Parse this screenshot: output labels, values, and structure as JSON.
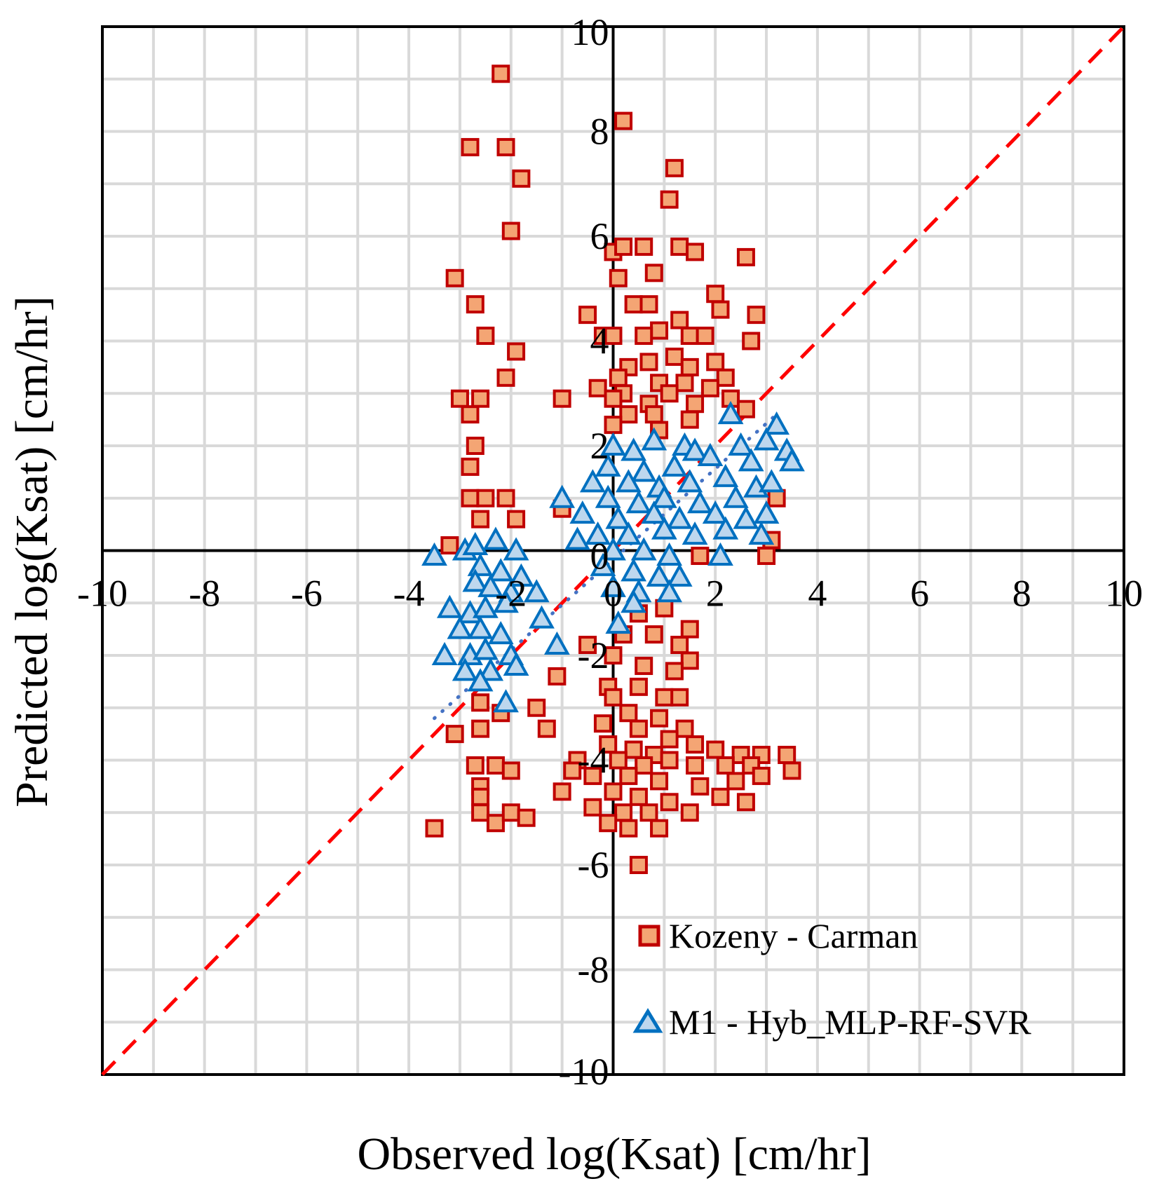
{
  "chart_data": {
    "type": "scatter",
    "title": "",
    "xlabel": "Observed log(Ksat) [cm/hr]",
    "ylabel": "Predicted log(Ksat) [cm/hr]",
    "xlim": [
      -10,
      10
    ],
    "ylim": [
      -10,
      10
    ],
    "x_ticks": [
      "-10",
      "-8",
      "-6",
      "-4",
      "-2",
      "0",
      "2",
      "4",
      "6",
      "8",
      "10"
    ],
    "y_ticks": [
      "-10",
      "-8",
      "-6",
      "-4",
      "-2",
      "0",
      "2",
      "4",
      "6",
      "8",
      "10"
    ],
    "grid": true,
    "legend_position": "bottom-right",
    "reference_line": {
      "name": "1:1 line",
      "style": "dashed",
      "color": "#ff0000",
      "from": [
        -10,
        -10
      ],
      "to": [
        10,
        10
      ]
    },
    "trend_line": {
      "name": "M1 trend",
      "style": "dotted",
      "color": "#4472c4",
      "from": [
        -3.5,
        -3.2
      ],
      "to": [
        3.2,
        2.6
      ]
    },
    "series": [
      {
        "name": "Kozeny - Carman",
        "marker": "square",
        "fill": "#f4a574",
        "stroke": "#c00000",
        "points": [
          [
            -2.2,
            9.1
          ],
          [
            0.2,
            8.2
          ],
          [
            -2.8,
            7.7
          ],
          [
            -2.1,
            7.7
          ],
          [
            -1.8,
            7.1
          ],
          [
            1.2,
            7.3
          ],
          [
            1.1,
            6.7
          ],
          [
            -2.0,
            6.1
          ],
          [
            0.0,
            5.7
          ],
          [
            0.2,
            5.8
          ],
          [
            0.6,
            5.8
          ],
          [
            1.3,
            5.8
          ],
          [
            1.6,
            5.7
          ],
          [
            2.6,
            5.6
          ],
          [
            0.1,
            5.2
          ],
          [
            0.8,
            5.3
          ],
          [
            -3.1,
            5.2
          ],
          [
            2.0,
            4.9
          ],
          [
            -2.7,
            4.7
          ],
          [
            0.4,
            4.7
          ],
          [
            0.7,
            4.7
          ],
          [
            2.1,
            4.6
          ],
          [
            2.8,
            4.5
          ],
          [
            -0.5,
            4.5
          ],
          [
            1.3,
            4.4
          ],
          [
            0.9,
            4.2
          ],
          [
            -0.2,
            4.1
          ],
          [
            0.0,
            4.1
          ],
          [
            0.6,
            4.1
          ],
          [
            1.5,
            4.1
          ],
          [
            1.8,
            4.1
          ],
          [
            2.7,
            4.0
          ],
          [
            -2.5,
            4.1
          ],
          [
            -1.9,
            3.8
          ],
          [
            0.3,
            3.5
          ],
          [
            0.7,
            3.6
          ],
          [
            1.2,
            3.7
          ],
          [
            1.5,
            3.5
          ],
          [
            2.0,
            3.6
          ],
          [
            0.1,
            3.3
          ],
          [
            0.9,
            3.2
          ],
          [
            1.4,
            3.2
          ],
          [
            2.2,
            3.3
          ],
          [
            -2.1,
            3.3
          ],
          [
            -0.3,
            3.1
          ],
          [
            0.2,
            3.0
          ],
          [
            1.1,
            3.0
          ],
          [
            1.9,
            3.1
          ],
          [
            0.0,
            2.9
          ],
          [
            0.7,
            2.8
          ],
          [
            1.6,
            2.8
          ],
          [
            2.3,
            2.9
          ],
          [
            -3.0,
            2.9
          ],
          [
            -2.6,
            2.9
          ],
          [
            -1.0,
            2.9
          ],
          [
            0.3,
            2.6
          ],
          [
            0.8,
            2.6
          ],
          [
            1.5,
            2.5
          ],
          [
            2.6,
            2.7
          ],
          [
            -2.8,
            2.6
          ],
          [
            0.0,
            2.4
          ],
          [
            0.9,
            2.3
          ],
          [
            -2.7,
            2.0
          ],
          [
            -2.8,
            1.6
          ],
          [
            -2.8,
            1.0
          ],
          [
            -2.5,
            1.0
          ],
          [
            -2.1,
            1.0
          ],
          [
            -2.6,
            0.6
          ],
          [
            -1.9,
            0.6
          ],
          [
            -3.2,
            0.1
          ],
          [
            -1.0,
            0.8
          ],
          [
            3.2,
            1.0
          ],
          [
            3.1,
            0.2
          ],
          [
            3.0,
            -0.1
          ],
          [
            1.7,
            -0.1
          ],
          [
            0.5,
            -1.2
          ],
          [
            1.0,
            -1.1
          ],
          [
            1.5,
            -1.5
          ],
          [
            0.2,
            -1.6
          ],
          [
            0.8,
            -1.6
          ],
          [
            1.3,
            -1.8
          ],
          [
            1.5,
            -2.1
          ],
          [
            -0.5,
            -1.8
          ],
          [
            0.0,
            -2.0
          ],
          [
            0.6,
            -2.2
          ],
          [
            1.2,
            -2.3
          ],
          [
            -0.1,
            -2.6
          ],
          [
            0.5,
            -2.6
          ],
          [
            1.0,
            -2.8
          ],
          [
            1.3,
            -2.8
          ],
          [
            -1.1,
            -2.4
          ],
          [
            0.0,
            -2.8
          ],
          [
            0.3,
            -3.1
          ],
          [
            0.9,
            -3.2
          ],
          [
            1.4,
            -3.4
          ],
          [
            -1.5,
            -3.0
          ],
          [
            -2.6,
            -2.9
          ],
          [
            -2.2,
            -3.1
          ],
          [
            -0.2,
            -3.3
          ],
          [
            0.5,
            -3.4
          ],
          [
            1.1,
            -3.6
          ],
          [
            1.6,
            -3.7
          ],
          [
            -1.3,
            -3.4
          ],
          [
            -3.1,
            -3.5
          ],
          [
            -2.6,
            -3.4
          ],
          [
            -0.1,
            -3.7
          ],
          [
            0.4,
            -3.8
          ],
          [
            0.8,
            -3.9
          ],
          [
            2.0,
            -3.8
          ],
          [
            2.5,
            -3.9
          ],
          [
            2.9,
            -3.9
          ],
          [
            3.4,
            -3.9
          ],
          [
            -0.7,
            -4.0
          ],
          [
            0.1,
            -4.0
          ],
          [
            0.6,
            -4.1
          ],
          [
            1.1,
            -4.0
          ],
          [
            1.6,
            -4.1
          ],
          [
            2.2,
            -4.1
          ],
          [
            2.7,
            -4.1
          ],
          [
            3.5,
            -4.2
          ],
          [
            -0.8,
            -4.2
          ],
          [
            -0.4,
            -4.3
          ],
          [
            0.3,
            -4.3
          ],
          [
            0.9,
            -4.4
          ],
          [
            1.7,
            -4.5
          ],
          [
            2.4,
            -4.4
          ],
          [
            2.9,
            -4.3
          ],
          [
            -2.7,
            -4.1
          ],
          [
            -2.3,
            -4.1
          ],
          [
            -2.0,
            -4.2
          ],
          [
            -2.6,
            -4.5
          ],
          [
            -1.0,
            -4.6
          ],
          [
            0.0,
            -4.6
          ],
          [
            0.5,
            -4.7
          ],
          [
            1.1,
            -4.8
          ],
          [
            2.1,
            -4.7
          ],
          [
            2.6,
            -4.8
          ],
          [
            -2.6,
            -4.7
          ],
          [
            -0.4,
            -4.9
          ],
          [
            0.2,
            -5.0
          ],
          [
            0.7,
            -5.0
          ],
          [
            1.5,
            -5.0
          ],
          [
            -2.6,
            -5.0
          ],
          [
            -2.3,
            -5.2
          ],
          [
            -2.0,
            -5.0
          ],
          [
            -1.7,
            -5.1
          ],
          [
            -0.1,
            -5.2
          ],
          [
            0.3,
            -5.3
          ],
          [
            0.9,
            -5.3
          ],
          [
            -3.5,
            -5.3
          ],
          [
            0.5,
            -6.0
          ]
        ]
      },
      {
        "name": "M1 - Hyb_MLP-RF-SVR",
        "marker": "triangle",
        "fill": "#bdd7ee",
        "stroke": "#0070c0",
        "points": [
          [
            2.3,
            2.6
          ],
          [
            3.2,
            2.4
          ],
          [
            0.0,
            2.0
          ],
          [
            0.4,
            1.9
          ],
          [
            0.8,
            2.1
          ],
          [
            1.4,
            2.0
          ],
          [
            1.6,
            1.9
          ],
          [
            2.5,
            2.0
          ],
          [
            3.0,
            2.1
          ],
          [
            3.4,
            1.9
          ],
          [
            -0.1,
            1.6
          ],
          [
            0.6,
            1.5
          ],
          [
            1.2,
            1.6
          ],
          [
            1.9,
            1.8
          ],
          [
            2.7,
            1.7
          ],
          [
            3.5,
            1.7
          ],
          [
            -0.4,
            1.3
          ],
          [
            0.3,
            1.3
          ],
          [
            0.9,
            1.2
          ],
          [
            1.5,
            1.3
          ],
          [
            2.2,
            1.4
          ],
          [
            2.8,
            1.2
          ],
          [
            3.1,
            1.3
          ],
          [
            -1.0,
            1.0
          ],
          [
            -0.1,
            1.0
          ],
          [
            0.5,
            0.9
          ],
          [
            1.0,
            1.0
          ],
          [
            1.7,
            0.9
          ],
          [
            2.4,
            1.0
          ],
          [
            -0.6,
            0.7
          ],
          [
            0.1,
            0.6
          ],
          [
            0.8,
            0.7
          ],
          [
            1.3,
            0.6
          ],
          [
            2.0,
            0.7
          ],
          [
            2.6,
            0.6
          ],
          [
            3.0,
            0.7
          ],
          [
            -0.3,
            0.3
          ],
          [
            0.3,
            0.3
          ],
          [
            1.0,
            0.4
          ],
          [
            1.6,
            0.3
          ],
          [
            2.2,
            0.4
          ],
          [
            2.9,
            0.3
          ],
          [
            -0.7,
            0.2
          ],
          [
            0.0,
            0.0
          ],
          [
            0.6,
            0.0
          ],
          [
            1.1,
            -0.1
          ],
          [
            2.1,
            -0.1
          ],
          [
            -0.2,
            -0.3
          ],
          [
            0.4,
            -0.4
          ],
          [
            0.9,
            -0.5
          ],
          [
            1.3,
            -0.5
          ],
          [
            0.0,
            -0.7
          ],
          [
            0.5,
            -0.8
          ],
          [
            1.1,
            -0.8
          ],
          [
            0.4,
            -1.0
          ],
          [
            0.1,
            -1.4
          ],
          [
            -3.5,
            -0.1
          ],
          [
            -2.9,
            0.0
          ],
          [
            -2.7,
            0.1
          ],
          [
            -2.3,
            0.2
          ],
          [
            -1.9,
            0.0
          ],
          [
            -2.6,
            -0.3
          ],
          [
            -2.2,
            -0.4
          ],
          [
            -1.8,
            -0.5
          ],
          [
            -2.7,
            -0.6
          ],
          [
            -2.4,
            -0.7
          ],
          [
            -2.0,
            -0.8
          ],
          [
            -1.5,
            -0.8
          ],
          [
            -3.2,
            -1.1
          ],
          [
            -2.8,
            -1.2
          ],
          [
            -2.5,
            -1.1
          ],
          [
            -2.1,
            -1.0
          ],
          [
            -1.4,
            -1.3
          ],
          [
            -3.0,
            -1.5
          ],
          [
            -2.6,
            -1.5
          ],
          [
            -2.2,
            -1.6
          ],
          [
            -1.1,
            -1.8
          ],
          [
            -3.3,
            -2.0
          ],
          [
            -2.8,
            -2.0
          ],
          [
            -2.5,
            -1.9
          ],
          [
            -2.0,
            -2.0
          ],
          [
            -2.9,
            -2.3
          ],
          [
            -2.4,
            -2.3
          ],
          [
            -1.9,
            -2.2
          ],
          [
            -2.6,
            -2.5
          ],
          [
            -2.1,
            -2.9
          ]
        ]
      }
    ]
  }
}
